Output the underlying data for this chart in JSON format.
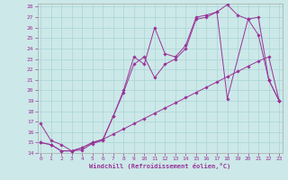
{
  "xlabel": "Windchill (Refroidissement éolien,°C)",
  "bg_color": "#cce8e8",
  "grid_color": "#aad4d4",
  "line_color": "#993399",
  "tick_color": "#993399",
  "xlim": [
    0,
    23
  ],
  "ylim": [
    14,
    28
  ],
  "xticks": [
    0,
    1,
    2,
    3,
    4,
    5,
    6,
    7,
    8,
    9,
    10,
    11,
    12,
    13,
    14,
    15,
    16,
    17,
    18,
    19,
    20,
    21,
    22,
    23
  ],
  "yticks": [
    14,
    15,
    16,
    17,
    18,
    19,
    20,
    21,
    22,
    23,
    24,
    25,
    26,
    27,
    28
  ],
  "line1_x": [
    0,
    1,
    2,
    3,
    4,
    5,
    6,
    7,
    8,
    9,
    10,
    11,
    12,
    13,
    14,
    15,
    16,
    17,
    18,
    19,
    20,
    21,
    22,
    23
  ],
  "line1_y": [
    16.8,
    15.2,
    14.8,
    14.2,
    14.3,
    14.9,
    15.2,
    17.5,
    20.0,
    23.2,
    22.5,
    26.0,
    23.5,
    23.2,
    24.3,
    27.0,
    27.2,
    27.5,
    28.2,
    27.2,
    26.8,
    25.3,
    21.0,
    19.0
  ],
  "line2_x": [
    0,
    1,
    2,
    3,
    4,
    5,
    6,
    7,
    8,
    9,
    10,
    11,
    12,
    13,
    14,
    15,
    16,
    17,
    18,
    19,
    20,
    21,
    22,
    23
  ],
  "line2_y": [
    15.0,
    14.8,
    14.2,
    14.2,
    14.5,
    15.0,
    15.3,
    15.8,
    16.3,
    16.8,
    17.3,
    17.8,
    18.3,
    18.8,
    19.3,
    19.8,
    20.3,
    20.8,
    21.3,
    21.8,
    22.3,
    22.8,
    23.2,
    19.0
  ],
  "line3_x": [
    0,
    1,
    2,
    3,
    4,
    5,
    6,
    7,
    8,
    9,
    10,
    11,
    12,
    13,
    14,
    15,
    16,
    17,
    18,
    20,
    21,
    22,
    23
  ],
  "line3_y": [
    15.0,
    14.8,
    14.2,
    14.2,
    14.5,
    15.0,
    15.3,
    17.5,
    19.8,
    22.5,
    23.2,
    21.2,
    22.5,
    23.0,
    24.0,
    26.8,
    27.0,
    27.5,
    19.2,
    26.8,
    27.0,
    21.0,
    19.0
  ]
}
